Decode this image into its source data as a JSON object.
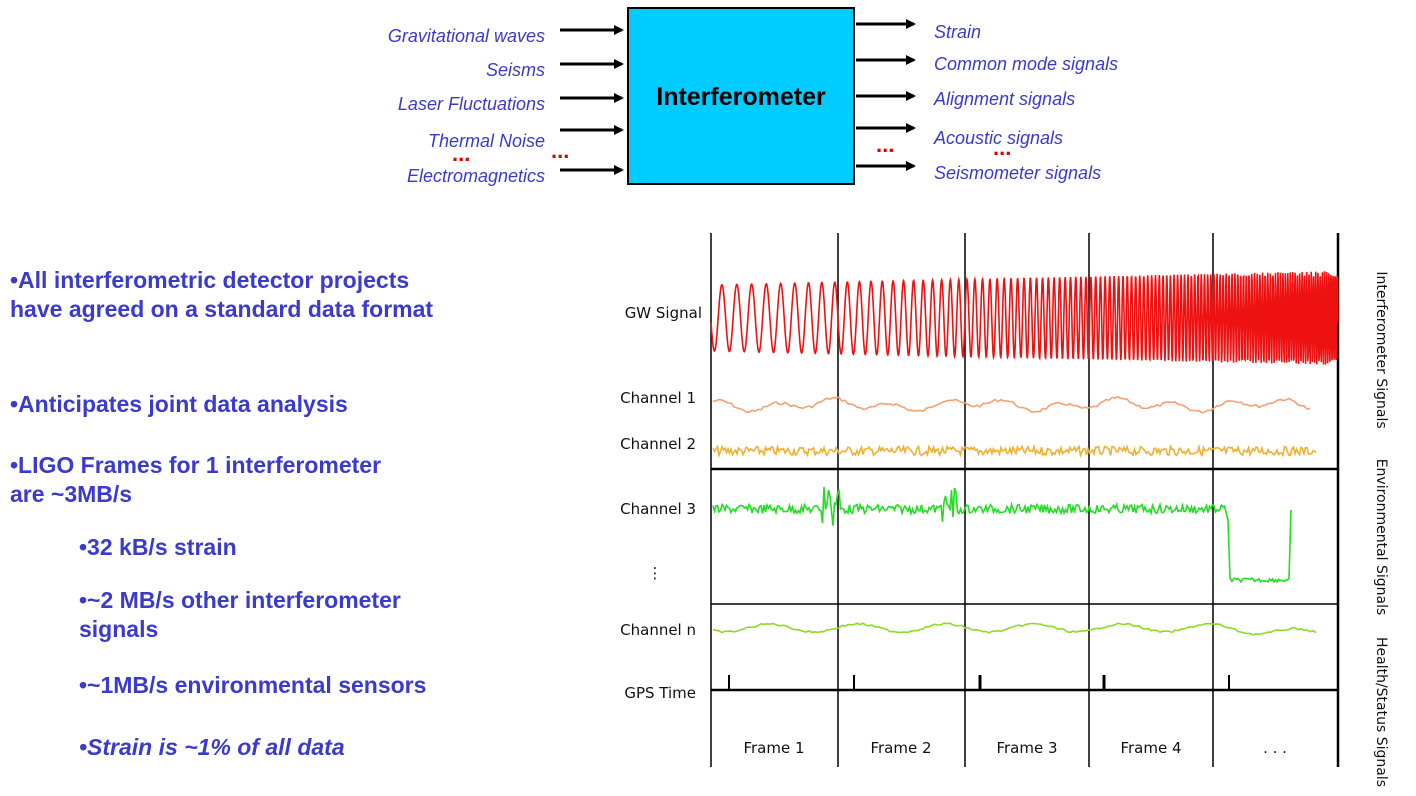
{
  "diagram": {
    "box_label": "Interferometer",
    "inputs": [
      "Gravitational waves",
      "Seisms",
      "Laser Fluctuations",
      "Thermal Noise",
      "Electromagnetics"
    ],
    "outputs": [
      "Strain",
      "Common mode signals",
      "Alignment signals",
      "Acoustic signals",
      "Seismometer signals"
    ],
    "ellipsis": "...",
    "box_color": "#00ccff",
    "label_color": "#3a3acc",
    "ellipsis_color": "#e00000"
  },
  "bullets": [
    {
      "text": "•All interferometric detector projects have agreed on a standard data format",
      "level": 0,
      "italic": false
    },
    {
      "text": "•Anticipates joint data analysis",
      "level": 0,
      "italic": false
    },
    {
      "text": "•LIGO Frames for 1 interferometer are ~3MB/s",
      "level": 0,
      "italic": false
    },
    {
      "text": "•32 kB/s strain",
      "level": 1,
      "italic": false
    },
    {
      "text": "•~2 MB/s other interferometer signals",
      "level": 1,
      "italic": false
    },
    {
      "text": "•~1MB/s environmental sensors",
      "level": 1,
      "italic": false
    },
    {
      "text": "•Strain is ~1% of all data",
      "level": 1,
      "italic": true
    }
  ],
  "frame_chart": {
    "channels": [
      "GW Signal",
      "Channel 1",
      "Channel 2",
      "Channel 3",
      "Channel n",
      "GPS Time"
    ],
    "vertical_ellipsis": "⋮",
    "frames": [
      "Frame 1",
      "Frame 2",
      "Frame 3",
      "Frame 4",
      ". . ."
    ],
    "groups": [
      "Interferometer Signals",
      "Environmental Signals",
      "Health/Status Signals"
    ],
    "colors": {
      "gw": "#ee1111",
      "ch1": "#f4a070",
      "ch2": "#f0b030",
      "ch3": "#22dd22",
      "chn": "#88dd22"
    }
  }
}
